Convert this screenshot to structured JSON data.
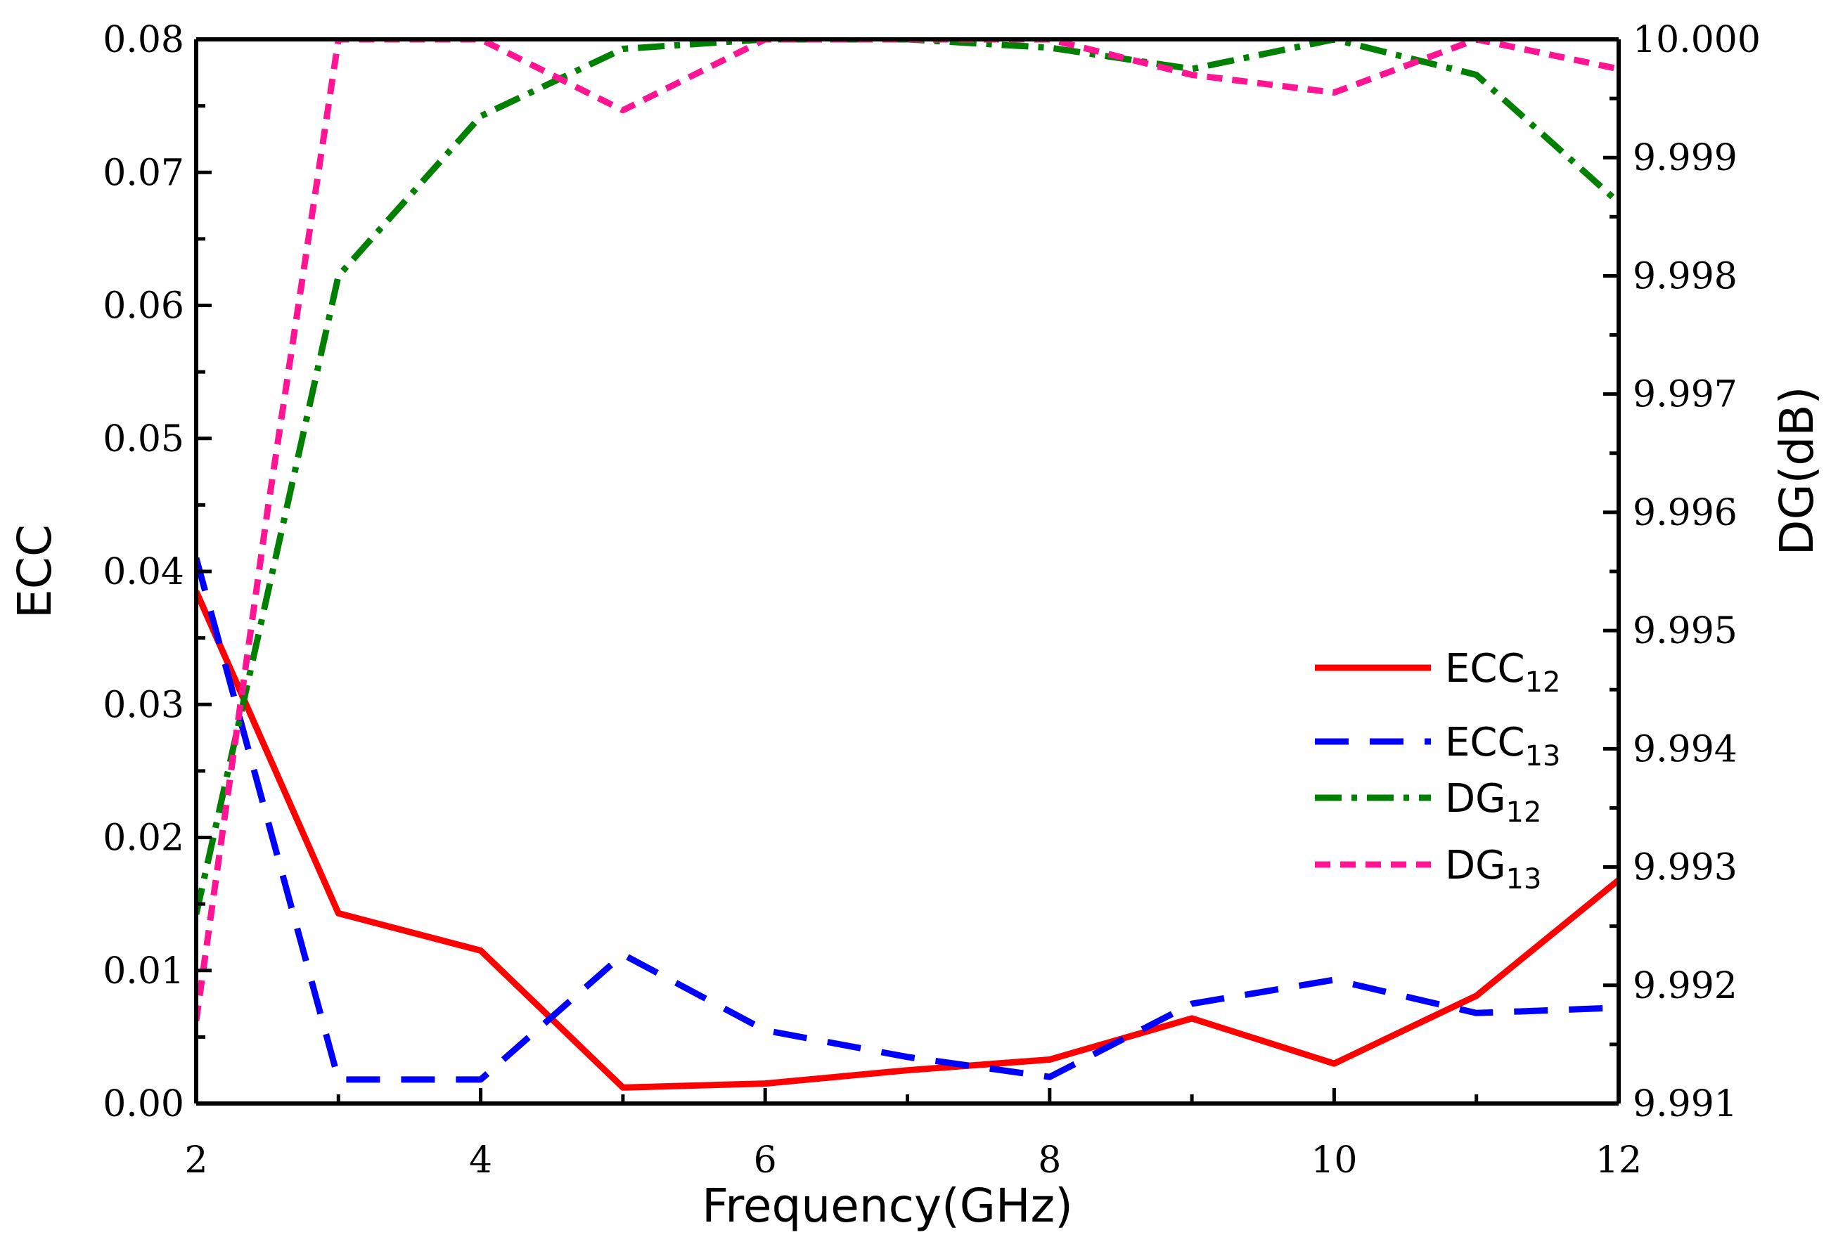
{
  "chart_data": {
    "type": "line",
    "xlabel": "Frequency(GHz)",
    "ylabel_left": "ECC",
    "ylabel_right": "DG(dB)",
    "xlim": [
      2,
      12
    ],
    "ylim_left": [
      0,
      0.08
    ],
    "ylim_right": [
      9.991,
      10.0
    ],
    "x_ticks": [
      "2",
      "4",
      "6",
      "8",
      "10",
      "12"
    ],
    "y_left_ticks": [
      "0.00",
      "0.01",
      "0.02",
      "0.03",
      "0.04",
      "0.05",
      "0.06",
      "0.07",
      "0.08"
    ],
    "y_right_ticks": [
      "9.991",
      "9.992",
      "9.993",
      "9.994",
      "9.995",
      "9.996",
      "9.997",
      "9.998",
      "9.999",
      "10.000"
    ],
    "grid": false,
    "legend_position": "right-middle",
    "series": [
      {
        "name": "ECC12",
        "label_main": "ECC",
        "label_sub": "12",
        "axis": "left",
        "color": "#ff0000",
        "dash": "solid",
        "x": [
          2,
          3,
          4,
          5,
          6,
          7,
          8,
          9,
          10,
          11,
          12
        ],
        "values": [
          0.0385,
          0.0143,
          0.0115,
          0.0012,
          0.0015,
          0.0025,
          0.0033,
          0.0064,
          0.003,
          0.0081,
          0.0168
        ]
      },
      {
        "name": "ECC13",
        "label_main": "ECC",
        "label_sub": "13",
        "axis": "left",
        "color": "#0000ff",
        "dash": "long-dash",
        "x": [
          2,
          3,
          4,
          5,
          6,
          7,
          8,
          9,
          10,
          11,
          12
        ],
        "values": [
          0.041,
          0.0018,
          0.0018,
          0.0112,
          0.0055,
          0.0035,
          0.002,
          0.0075,
          0.0093,
          0.0068,
          0.0072
        ]
      },
      {
        "name": "DG12",
        "label_main": "DG",
        "label_sub": "12",
        "axis": "right",
        "color": "#008000",
        "dash": "dash-dot",
        "x": [
          2,
          3,
          4,
          5,
          6,
          7,
          8,
          9,
          10,
          11,
          12
        ],
        "values": [
          9.9926,
          9.998,
          9.99935,
          9.99992,
          10.0,
          10.0,
          9.99993,
          9.99975,
          10.0,
          9.9997,
          9.99862
        ]
      },
      {
        "name": "DG13",
        "label_main": "DG",
        "label_sub": "13",
        "axis": "right",
        "color": "#ff1493",
        "dash": "short-dash",
        "x": [
          2,
          2.5,
          3,
          4,
          5,
          6,
          7,
          8,
          9,
          10,
          11,
          12
        ],
        "values": [
          9.9917,
          9.996,
          10.0,
          10.0,
          9.9994,
          10.0,
          10.0,
          10.0,
          9.9997,
          9.99955,
          10.0,
          9.99975
        ]
      }
    ]
  }
}
